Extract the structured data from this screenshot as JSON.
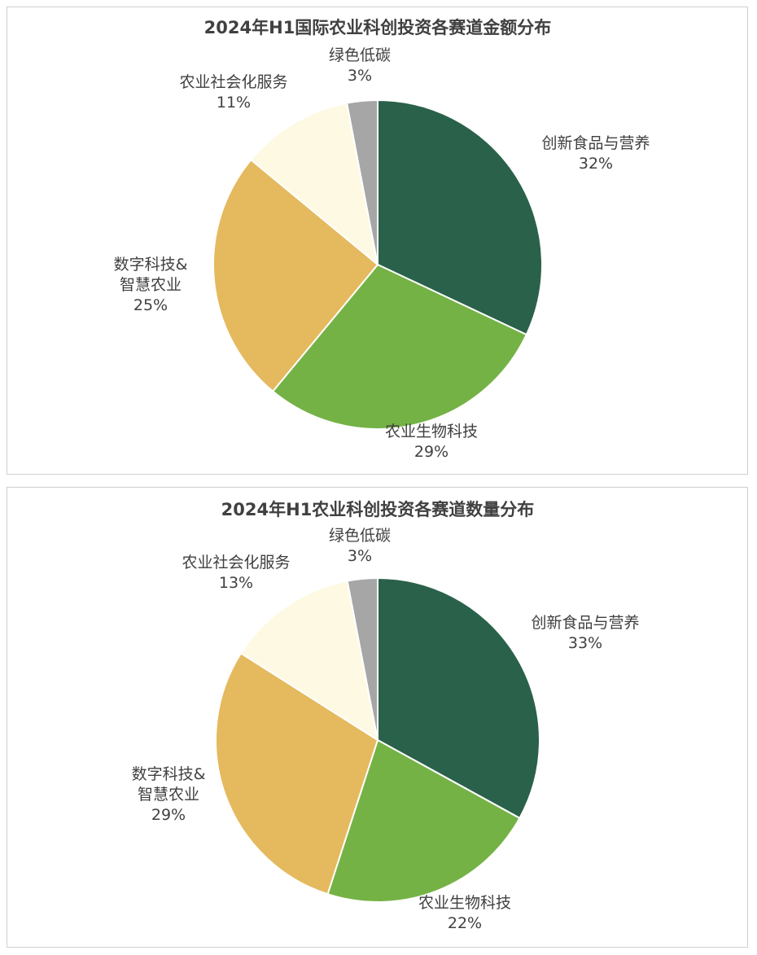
{
  "chart_data": [
    {
      "type": "pie",
      "title": "2024年H1国际农业科创投资各赛道金额分布",
      "slices": [
        {
          "name": "创新食品与营养",
          "value": 32,
          "label": "32%",
          "color": "#2A614A"
        },
        {
          "name": "农业生物科技",
          "value": 29,
          "label": "29%",
          "color": "#74B245"
        },
        {
          "name": "数字科技&智慧农业",
          "label_lines": [
            "数字科技&",
            "智慧农业"
          ],
          "value": 25,
          "label": "25%",
          "color": "#E5B95E"
        },
        {
          "name": "农业社会化服务",
          "value": 11,
          "label": "11%",
          "color": "#FEF9E3"
        },
        {
          "name": "绿色低碳",
          "value": 3,
          "label": "3%",
          "color": "#A6A6A6"
        }
      ],
      "legend": "none",
      "start_angle": "12 o'clock",
      "direction": "clockwise"
    },
    {
      "type": "pie",
      "title": "2024年H1农业科创投资各赛道数量分布",
      "slices": [
        {
          "name": "创新食品与营养",
          "value": 33,
          "label": "33%",
          "color": "#2A614A"
        },
        {
          "name": "农业生物科技",
          "value": 22,
          "label": "22%",
          "color": "#74B245"
        },
        {
          "name": "数字科技&智慧农业",
          "label_lines": [
            "数字科技&",
            "智慧农业"
          ],
          "value": 29,
          "label": "29%",
          "color": "#E5B95E"
        },
        {
          "name": "农业社会化服务",
          "value": 13,
          "label": "13%",
          "color": "#FEF9E3"
        },
        {
          "name": "绿色低碳",
          "value": 3,
          "label": "3%",
          "color": "#A6A6A6"
        }
      ],
      "legend": "none",
      "start_angle": "12 o'clock",
      "direction": "clockwise"
    }
  ]
}
